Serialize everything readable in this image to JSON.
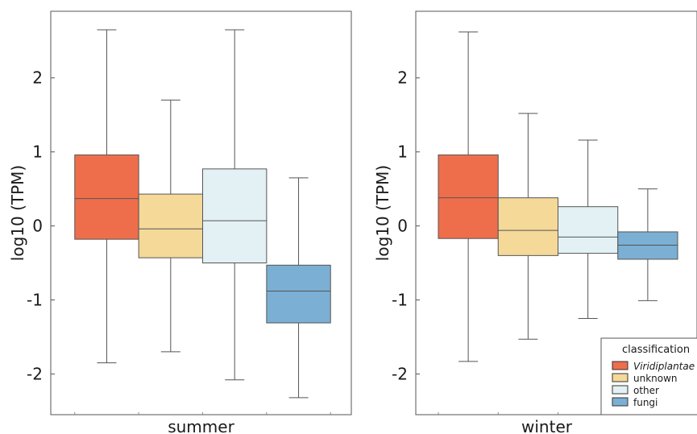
{
  "chart_data": [
    {
      "type": "box",
      "panel_label": "summer",
      "ylabel": "log10 (TPM)",
      "ylim": [
        -2.55,
        2.9
      ],
      "yticks": [
        -2,
        -1,
        0,
        1,
        2
      ],
      "boxes": [
        {
          "category": "Viridiplantae",
          "color": "#EE6E4C",
          "whisker_low": -1.85,
          "q1": -0.18,
          "median": 0.37,
          "q3": 0.96,
          "whisker_high": 2.65
        },
        {
          "category": "unknown",
          "color": "#F5D999",
          "whisker_low": -1.7,
          "q1": -0.43,
          "median": -0.04,
          "q3": 0.43,
          "whisker_high": 1.7
        },
        {
          "category": "other",
          "color": "#E3F1F4",
          "whisker_low": -2.08,
          "q1": -0.5,
          "median": 0.07,
          "q3": 0.77,
          "whisker_high": 2.65
        },
        {
          "category": "fungi",
          "color": "#7BAFD3",
          "whisker_low": -2.32,
          "q1": -1.31,
          "median": -0.88,
          "q3": -0.53,
          "whisker_high": 0.65
        }
      ]
    },
    {
      "type": "box",
      "panel_label": "winter",
      "ylabel": "log10 (TPM)",
      "ylim": [
        -2.55,
        2.9
      ],
      "yticks": [
        -2,
        -1,
        0,
        1,
        2
      ],
      "boxes": [
        {
          "category": "Viridiplantae",
          "color": "#EE6E4C",
          "whisker_low": -1.83,
          "q1": -0.17,
          "median": 0.38,
          "q3": 0.96,
          "whisker_high": 2.62
        },
        {
          "category": "unknown",
          "color": "#F5D999",
          "whisker_low": -1.53,
          "q1": -0.4,
          "median": -0.06,
          "q3": 0.38,
          "whisker_high": 1.52
        },
        {
          "category": "other",
          "color": "#E3F1F4",
          "whisker_low": -1.25,
          "q1": -0.37,
          "median": -0.15,
          "q3": 0.26,
          "whisker_high": 1.16
        },
        {
          "category": "fungi",
          "color": "#7BAFD3",
          "whisker_low": -1.01,
          "q1": -0.45,
          "median": -0.26,
          "q3": -0.08,
          "whisker_high": 0.5
        }
      ]
    }
  ],
  "legend": {
    "title": "classification",
    "placement": "bottom-right",
    "items": [
      {
        "label": "Viridiplantae",
        "color": "#EE6E4C",
        "italic": true
      },
      {
        "label": "unknown",
        "color": "#F5D999",
        "italic": false
      },
      {
        "label": "other",
        "color": "#E3F1F4",
        "italic": false
      },
      {
        "label": "fungi",
        "color": "#7BAFD3",
        "italic": false
      }
    ]
  }
}
